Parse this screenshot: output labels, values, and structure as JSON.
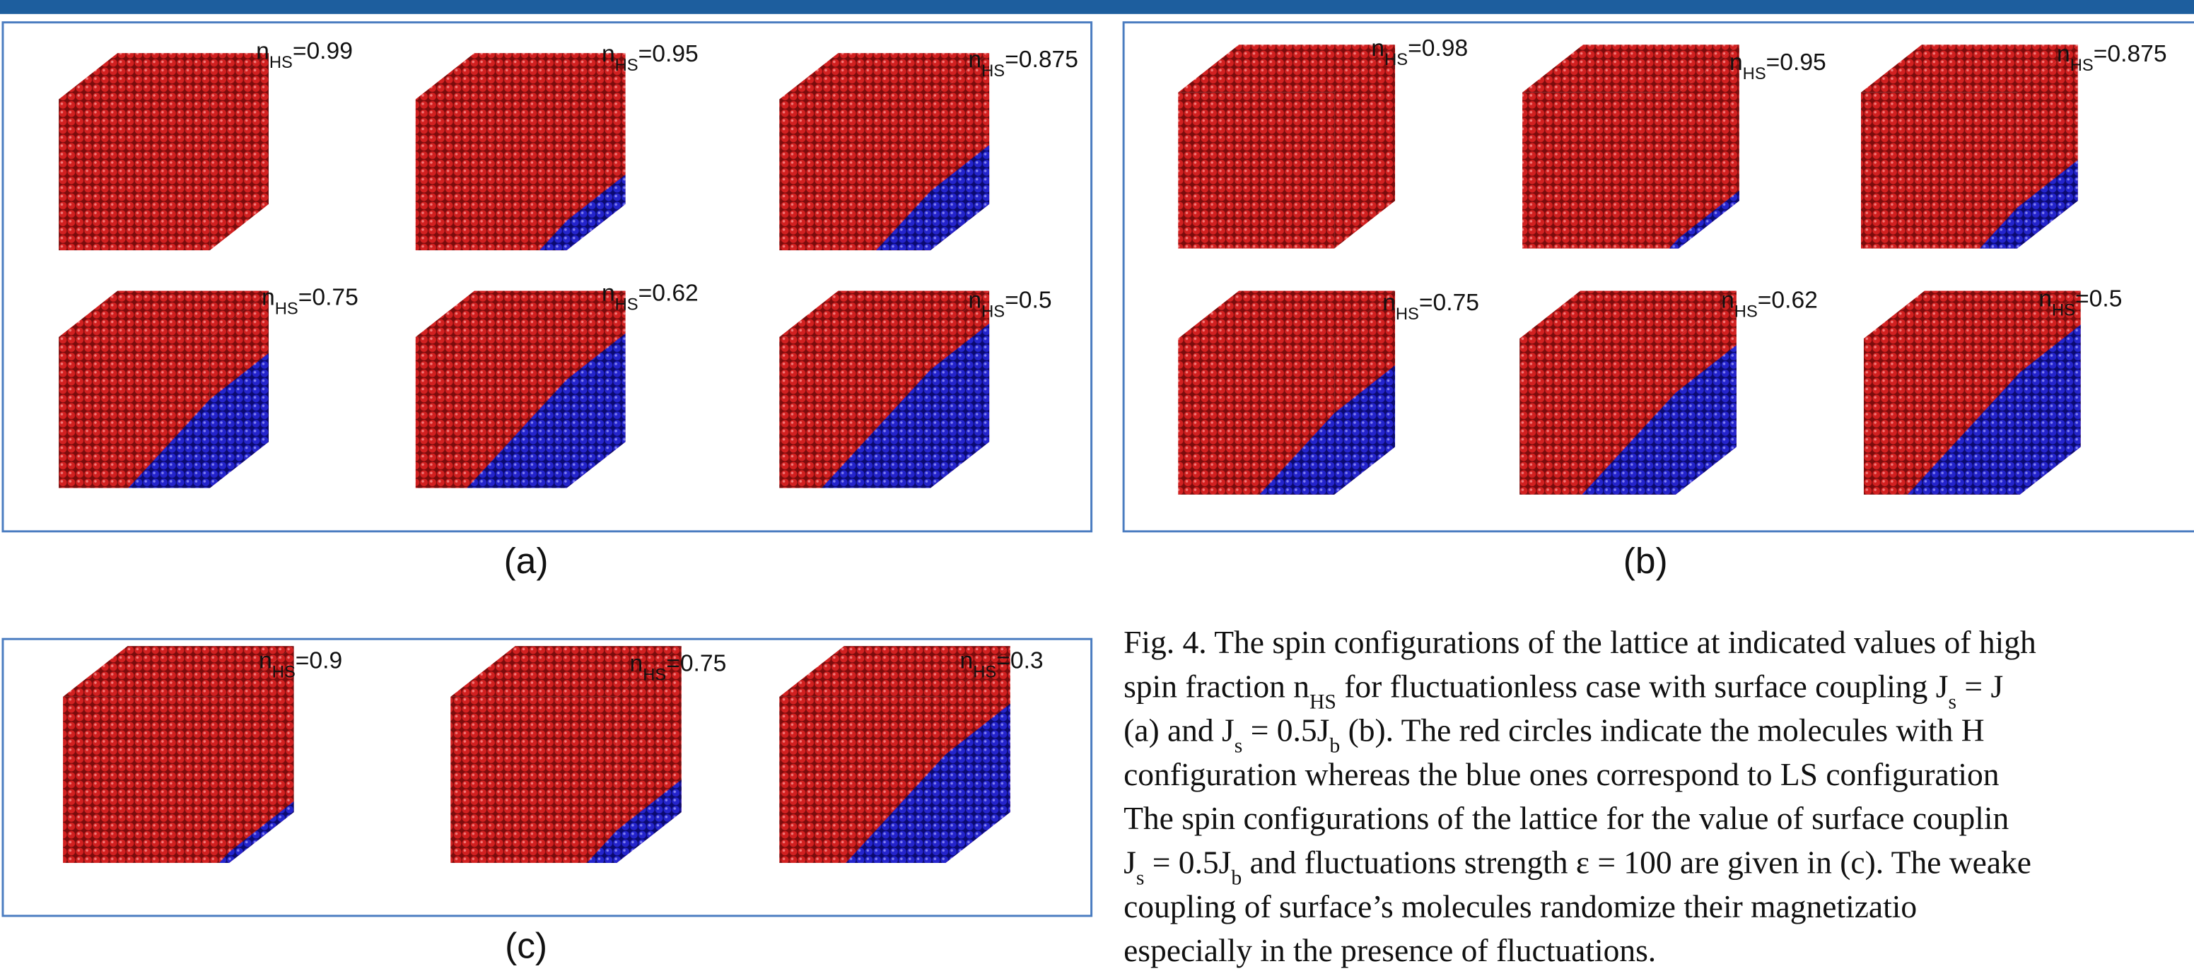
{
  "panels": [
    {
      "label": "(a)",
      "cubes": [
        [
          "n",
          "HS",
          "=0.99"
        ],
        [
          "n",
          "HS",
          "=0.95"
        ],
        [
          "n",
          "HS",
          "=0.875"
        ],
        [
          "n",
          "HS",
          "=0.75"
        ],
        [
          "n",
          "HS",
          "=0.62"
        ],
        [
          "n",
          "HS",
          "=0.5"
        ]
      ]
    },
    {
      "label": "(b)",
      "cubes": [
        [
          "n",
          "HS",
          "=0.98"
        ],
        [
          "n",
          "HS",
          "=0.95"
        ],
        [
          "n",
          "HS",
          "=0.875"
        ],
        [
          "n",
          "HS",
          "=0.75"
        ],
        [
          "n",
          "HS",
          "=0.62"
        ],
        [
          "n",
          "HS",
          "=0.5"
        ]
      ]
    },
    {
      "label": "(c)",
      "cubes": [
        [
          "n",
          "HS",
          "=0.9"
        ],
        [
          "n",
          "HS",
          "=0.75"
        ],
        [
          "n",
          "HS",
          "=0.3"
        ]
      ]
    }
  ],
  "caption": [
    [
      "Fig. 4. The spin configurations of the lattice at indicated values of high"
    ],
    [
      "spin fraction n",
      "HS",
      " for fluctuationless case with surface coupling J",
      "s",
      " = J"
    ],
    [
      "(a) and J",
      "s",
      " = 0.5J",
      "b",
      " (b). The red circles indicate the molecules with H"
    ],
    [
      "configuration whereas the blue ones correspond to LS configuration"
    ],
    [
      "The spin configurations of the lattice for the value of surface couplin"
    ],
    [
      "J",
      "s",
      " = 0.5J",
      "b",
      " and fluctuations strength ε = 100 are given in (c). The weake"
    ],
    [
      "coupling of surface’s molecules randomize their magnetizatio"
    ],
    [
      "especially in the presence of fluctuations."
    ]
  ]
}
